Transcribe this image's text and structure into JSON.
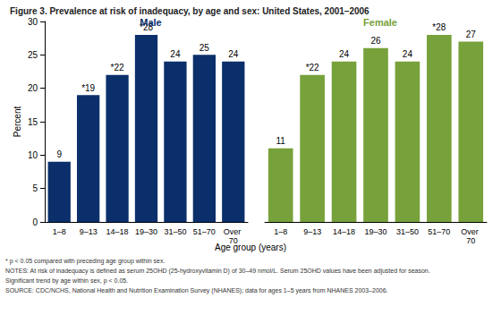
{
  "chart_data": {
    "type": "bar",
    "title": "Figure 3. Prevalence at risk of inadequacy, by age and sex: United States, 2001–2006",
    "xlabel": "Age group (years)",
    "ylabel": "Percent",
    "categories": [
      "1–8",
      "9–13",
      "14–18",
      "19–30",
      "31–50",
      "51–70",
      "Over 70"
    ],
    "series": [
      {
        "name": "Male",
        "color": "#0b2f6b",
        "values": [
          9,
          19,
          22,
          28,
          24,
          25,
          24
        ],
        "value_labels": [
          "9",
          "*19",
          "*22",
          "*28",
          "24",
          "25",
          "24"
        ]
      },
      {
        "name": "Female",
        "color": "#77a13a",
        "values": [
          11,
          22,
          24,
          26,
          24,
          28,
          27
        ],
        "value_labels": [
          "11",
          "*22",
          "24",
          "26",
          "24",
          "*28",
          "27"
        ]
      }
    ],
    "ylim": [
      0,
      30
    ],
    "yticks": [
      0,
      5,
      10,
      15,
      20,
      25,
      30
    ],
    "grid": false,
    "data_labels": true,
    "notes": [
      "* p < 0.05 compared with preceding age group within sex.",
      "NOTES: At risk of inadequacy is defined as serum 25OHD (25-hydroxyvitamin D) of 30–49 nmol/L. Serum 25OHD values have been adjusted for season.",
      "Significant trend by age within sex, p < 0.05.",
      "SOURCE: CDC/NCHS, National Health and Nutrition Examination Survey (NHANES); data for ages 1–5 years from NHANES 2003–2006."
    ]
  }
}
